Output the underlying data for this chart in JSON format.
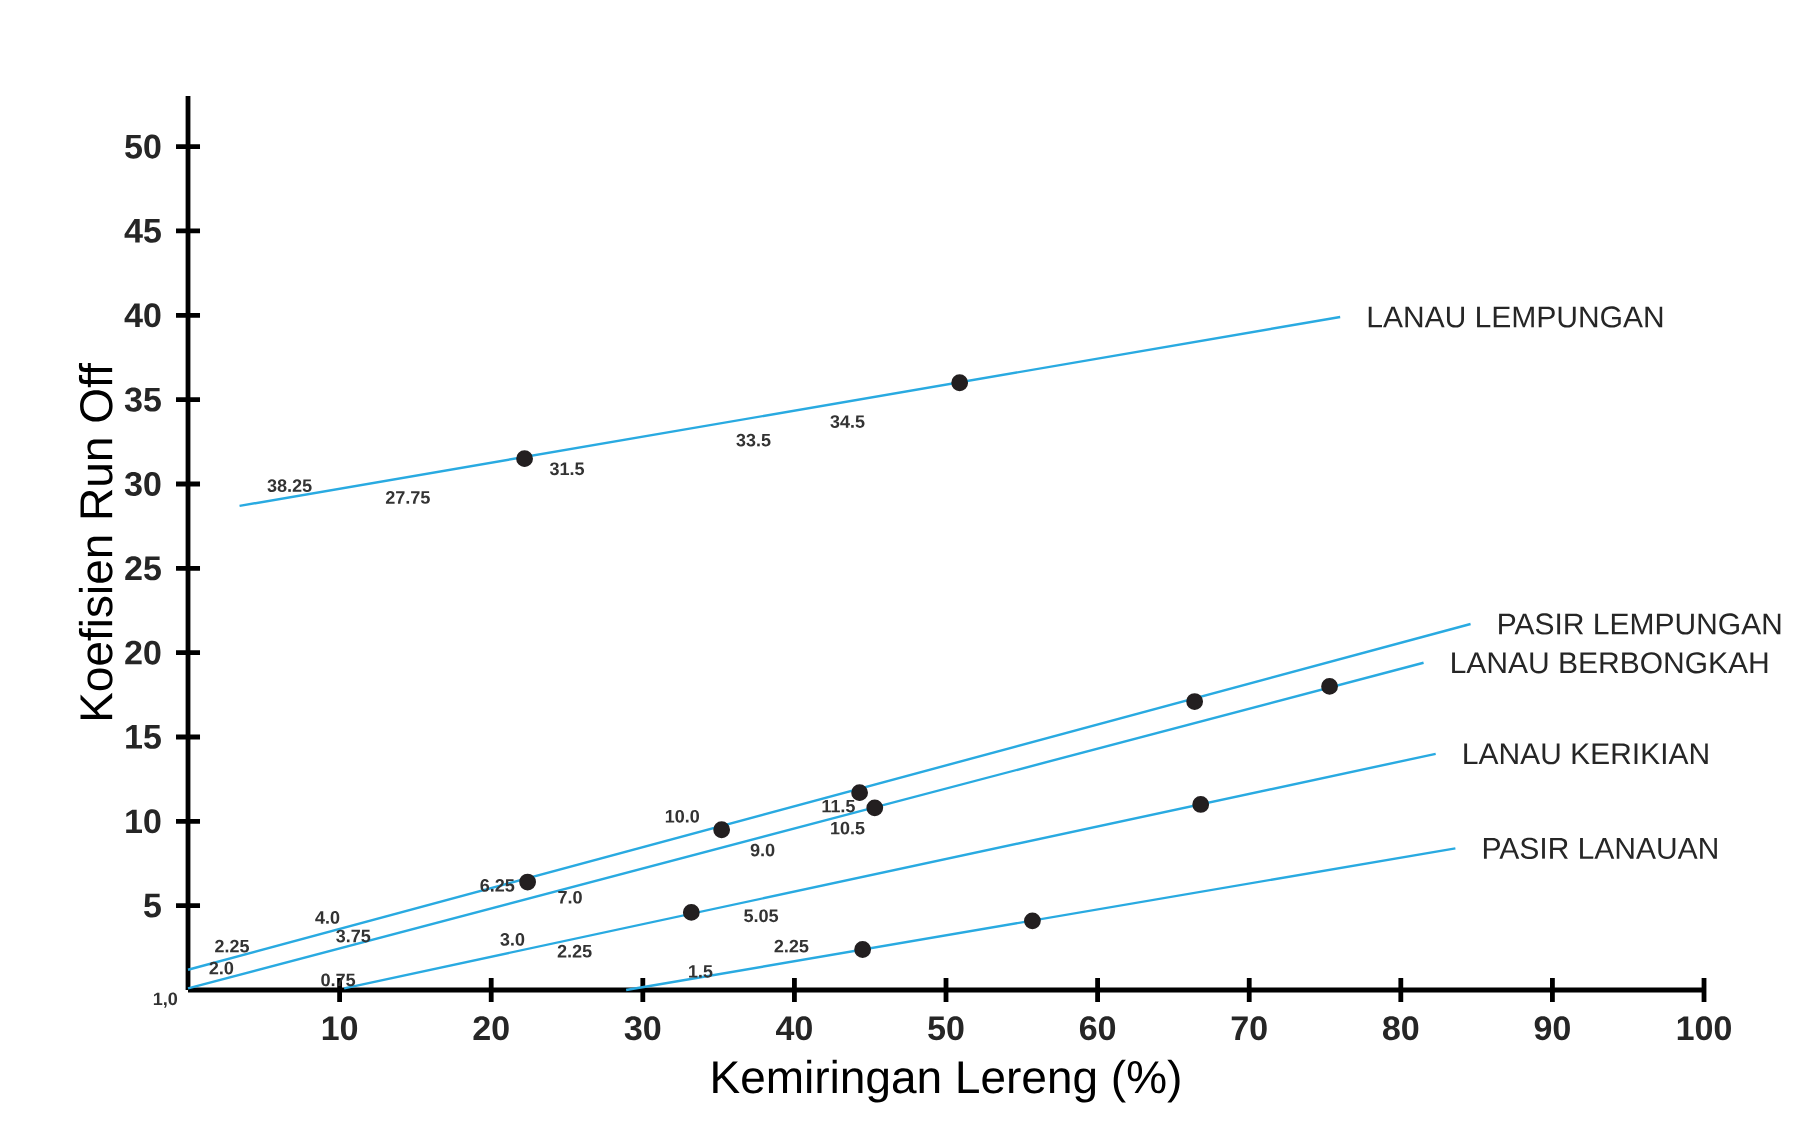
{
  "chart_data": {
    "type": "line",
    "xlabel": "Kemiringan Lereng (%)",
    "ylabel": "Koefisien Run Off",
    "xlim": [
      0,
      100
    ],
    "ylim": [
      0,
      53
    ],
    "xticks": [
      10,
      20,
      30,
      40,
      50,
      60,
      70,
      80,
      90,
      100
    ],
    "yticks": [
      5,
      10,
      15,
      20,
      25,
      30,
      35,
      40,
      45,
      50
    ],
    "grid": false,
    "legend": false,
    "line_style": "solid",
    "series": [
      {
        "name": "LANAU LEMPUNGAN",
        "color": "#29aae1",
        "marker": "none",
        "x": [
          3.4,
          76.0
        ],
        "values": [
          28.7,
          39.9
        ]
      },
      {
        "type": "scatter",
        "color": "#231f20",
        "marker": "circle",
        "x": [
          22.2,
          50.9
        ],
        "values": [
          31.5,
          36.0
        ]
      },
      {
        "name": "PASIR LEMPUNGAN",
        "color": "#29aae1",
        "marker": "none",
        "x": [
          0,
          84.6
        ],
        "values": [
          1.2,
          21.7
        ]
      },
      {
        "type": "scatter",
        "color": "#231f20",
        "marker": "circle",
        "x": [
          22.4,
          44.3,
          66.4
        ],
        "values": [
          6.4,
          11.7,
          17.1
        ]
      },
      {
        "name": "LANAU BERBONGKAH",
        "color": "#29aae1",
        "marker": "none",
        "x": [
          0,
          81.5
        ],
        "values": [
          0.1,
          19.4
        ]
      },
      {
        "type": "scatter",
        "color": "#231f20",
        "marker": "circle",
        "x": [
          35.2,
          45.3,
          75.3
        ],
        "values": [
          9.5,
          10.8,
          18.0
        ]
      },
      {
        "name": "LANAU KERIKIAN",
        "color": "#29aae1",
        "marker": "none",
        "x": [
          10.3,
          82.3
        ],
        "values": [
          0.1,
          14.0
        ]
      },
      {
        "type": "scatter",
        "color": "#231f20",
        "marker": "circle",
        "x": [
          33.2,
          66.8
        ],
        "values": [
          4.6,
          11.0
        ]
      },
      {
        "name": "PASIR LANAUAN",
        "color": "#29aae1",
        "marker": "none",
        "x": [
          28.9,
          83.6
        ],
        "values": [
          0,
          8.4
        ]
      },
      {
        "type": "scatter",
        "color": "#231f20",
        "marker": "circle",
        "x": [
          44.5,
          55.7
        ],
        "values": [
          2.4,
          4.1
        ]
      }
    ],
    "annotations": [
      "38.25",
      "27.75",
      "31.5",
      "33.5",
      "34.5",
      "2.25",
      "2.0",
      "4.0",
      "3.75",
      "0.75",
      "6.25",
      "7.0",
      "3.0",
      "2.25",
      "10.0",
      "9.0",
      "11.5",
      "10.5",
      "5.05",
      "1.5",
      "2.25",
      "1,0"
    ]
  }
}
